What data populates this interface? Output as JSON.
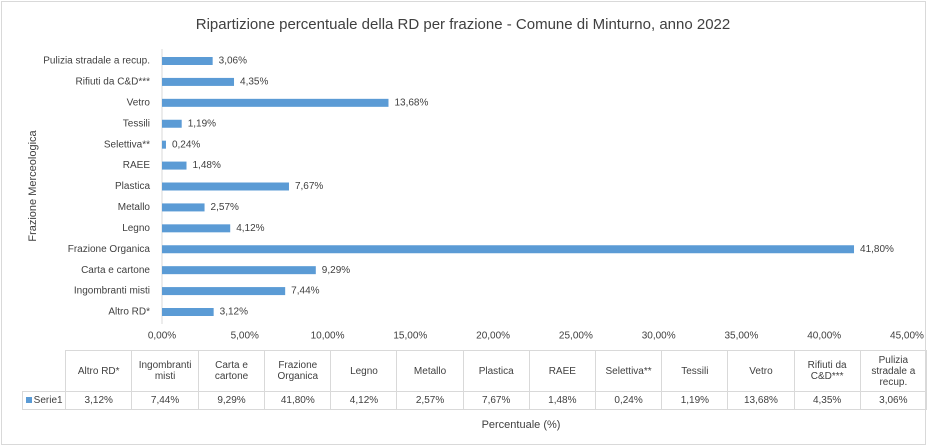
{
  "chart_data": {
    "type": "bar",
    "orientation": "horizontal",
    "title": "Ripartizione percentuale della RD per frazione - Comune di Minturno, anno 2022",
    "y_label": "Frazione Merceologica",
    "x_label": "Percentuale (%)",
    "series_name": "Serie1",
    "color": "#5b9bd5",
    "categories": [
      "Altro RD*",
      "Ingombranti misti",
      "Carta e cartone",
      "Frazione Organica",
      "Legno",
      "Metallo",
      "Plastica",
      "RAEE",
      "Selettiva**",
      "Tessili",
      "Vetro",
      "Rifiuti da C&D***",
      "Pulizia stradale a recup."
    ],
    "values": [
      3.12,
      7.44,
      9.29,
      41.8,
      4.12,
      2.57,
      7.67,
      1.48,
      0.24,
      1.19,
      13.68,
      4.35,
      3.06
    ],
    "value_labels": [
      "3,12%",
      "7,44%",
      "9,29%",
      "41,80%",
      "4,12%",
      "2,57%",
      "7,67%",
      "1,48%",
      "0,24%",
      "1,19%",
      "13,68%",
      "4,35%",
      "3,06%"
    ],
    "xlim": [
      0,
      45
    ],
    "xticks": [
      {
        "value": 0,
        "label": "0,00%"
      },
      {
        "value": 5,
        "label": "5,00%"
      },
      {
        "value": 10,
        "label": "10,00%"
      },
      {
        "value": 15,
        "label": "15,00%"
      },
      {
        "value": 20,
        "label": "20,00%"
      },
      {
        "value": 25,
        "label": "25,00%"
      },
      {
        "value": 30,
        "label": "30,00%"
      },
      {
        "value": 35,
        "label": "35,00%"
      },
      {
        "value": 40,
        "label": "40,00%"
      },
      {
        "value": 45,
        "label": "45,00%"
      }
    ],
    "grid": false,
    "data_table": true
  }
}
